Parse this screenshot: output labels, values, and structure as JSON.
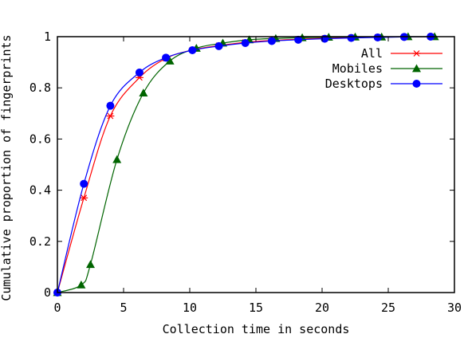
{
  "chart_data": {
    "type": "line",
    "title": "",
    "xlabel": "Collection time in seconds",
    "ylabel": "Cumulative proportion of fingerprints",
    "xlim": [
      0,
      30
    ],
    "ylim": [
      0,
      1
    ],
    "xticks": [
      0,
      5,
      10,
      15,
      20,
      25,
      30
    ],
    "yticks": [
      0,
      0.2,
      0.4,
      0.6,
      0.8,
      1
    ],
    "xtick_labels": [
      "0",
      "5",
      "10",
      "15",
      "20",
      "25",
      "30"
    ],
    "ytick_labels": [
      "0",
      "0.2",
      "0.4",
      "0.6",
      "0.8",
      "1"
    ],
    "grid": false,
    "legend_position": "top-right",
    "series": [
      {
        "name": "All",
        "color": "#ff0000",
        "marker": "asterisk",
        "x": [
          0,
          2,
          4,
          6.2,
          8.2,
          10.2,
          12.2,
          14.2,
          16.2,
          18.2,
          20.2,
          22.2,
          24.2,
          26.2,
          28.2
        ],
        "y": [
          0,
          0.37,
          0.69,
          0.84,
          0.915,
          0.948,
          0.965,
          0.978,
          0.985,
          0.99,
          0.994,
          0.996,
          0.998,
          0.999,
          1.0
        ]
      },
      {
        "name": "Mobiles",
        "color": "#006400",
        "marker": "triangle",
        "x": [
          0,
          1.8,
          2.5,
          4.5,
          6.5,
          8.5,
          10.5,
          12.5,
          14.5,
          16.5,
          18.5,
          20.5,
          22.5,
          24.5,
          26.5,
          28.5
        ],
        "y": [
          0,
          0.03,
          0.11,
          0.52,
          0.78,
          0.905,
          0.955,
          0.975,
          0.988,
          0.993,
          0.996,
          0.998,
          0.999,
          0.999,
          1.0,
          1.0
        ]
      },
      {
        "name": "Desktops",
        "color": "#0000ff",
        "marker": "circle",
        "x": [
          0,
          2,
          4,
          6.2,
          8.2,
          10.2,
          12.2,
          14.2,
          16.2,
          18.2,
          20.2,
          22.2,
          24.2,
          26.2,
          28.2
        ],
        "y": [
          0,
          0.425,
          0.73,
          0.86,
          0.918,
          0.947,
          0.963,
          0.975,
          0.983,
          0.988,
          0.992,
          0.995,
          0.997,
          0.999,
          1.0
        ]
      }
    ]
  }
}
